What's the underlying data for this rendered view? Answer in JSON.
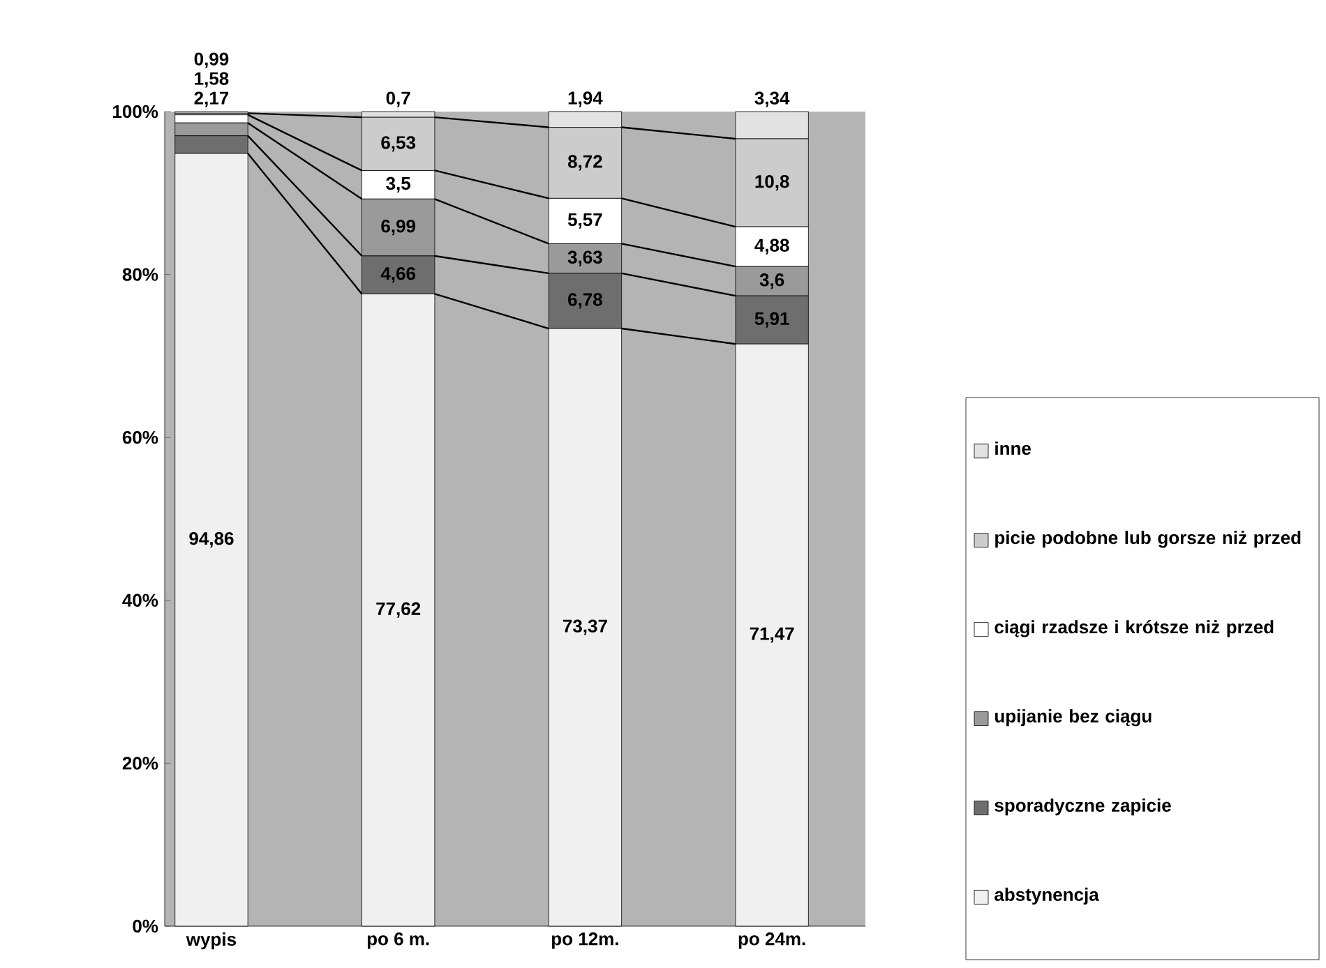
{
  "chart_data": {
    "type": "bar",
    "stacked": true,
    "legend": "right",
    "categories": [
      "wypis",
      "po 6 m.",
      "po 12m.",
      "po 24m."
    ],
    "ylim": [
      0,
      100
    ],
    "yticks": [
      {
        "value": 0,
        "label": "0%"
      },
      {
        "value": 20,
        "label": "20%"
      },
      {
        "value": 40,
        "label": "40%"
      },
      {
        "value": 60,
        "label": "60%"
      },
      {
        "value": 80,
        "label": "80%"
      },
      {
        "value": 100,
        "label": "100%"
      }
    ],
    "series": [
      {
        "name": "abstynencja",
        "color": "#f0f0f0",
        "values": [
          94.86,
          77.62,
          73.37,
          71.47
        ],
        "value_labels": [
          "94,86",
          "77,62",
          "73,37",
          "71,47"
        ]
      },
      {
        "name": "sporadyczne zapicie",
        "color": "#6e6e6e",
        "values": [
          2.17,
          4.66,
          6.78,
          5.91
        ],
        "value_labels": [
          "2,17",
          "4,66",
          "6,78",
          "5,91"
        ]
      },
      {
        "name": "upijanie bez ciągu",
        "color": "#9a9a9a",
        "values": [
          1.58,
          6.99,
          3.63,
          3.6
        ],
        "value_labels": [
          "1,58",
          "6,99",
          "3,63",
          "3,6"
        ]
      },
      {
        "name": "ciągi rzadsze i krótsze niż przed",
        "color": "#ffffff",
        "values": [
          0.99,
          3.5,
          5.57,
          4.88
        ],
        "value_labels": [
          "0,99",
          "3,5",
          "5,57",
          "4,88"
        ]
      },
      {
        "name": "picie podobne lub gorsze niż przed",
        "color": "#cccccc",
        "values": [
          0.2,
          6.53,
          8.72,
          10.8
        ],
        "value_labels": [
          null,
          "6,53",
          "8,72",
          "10,8"
        ]
      },
      {
        "name": "inne",
        "color": "#e2e2e2",
        "values": [
          0.2,
          0.7,
          1.94,
          3.34
        ],
        "value_labels": [
          null,
          "0,7",
          "1,94",
          "3,34"
        ]
      }
    ]
  }
}
